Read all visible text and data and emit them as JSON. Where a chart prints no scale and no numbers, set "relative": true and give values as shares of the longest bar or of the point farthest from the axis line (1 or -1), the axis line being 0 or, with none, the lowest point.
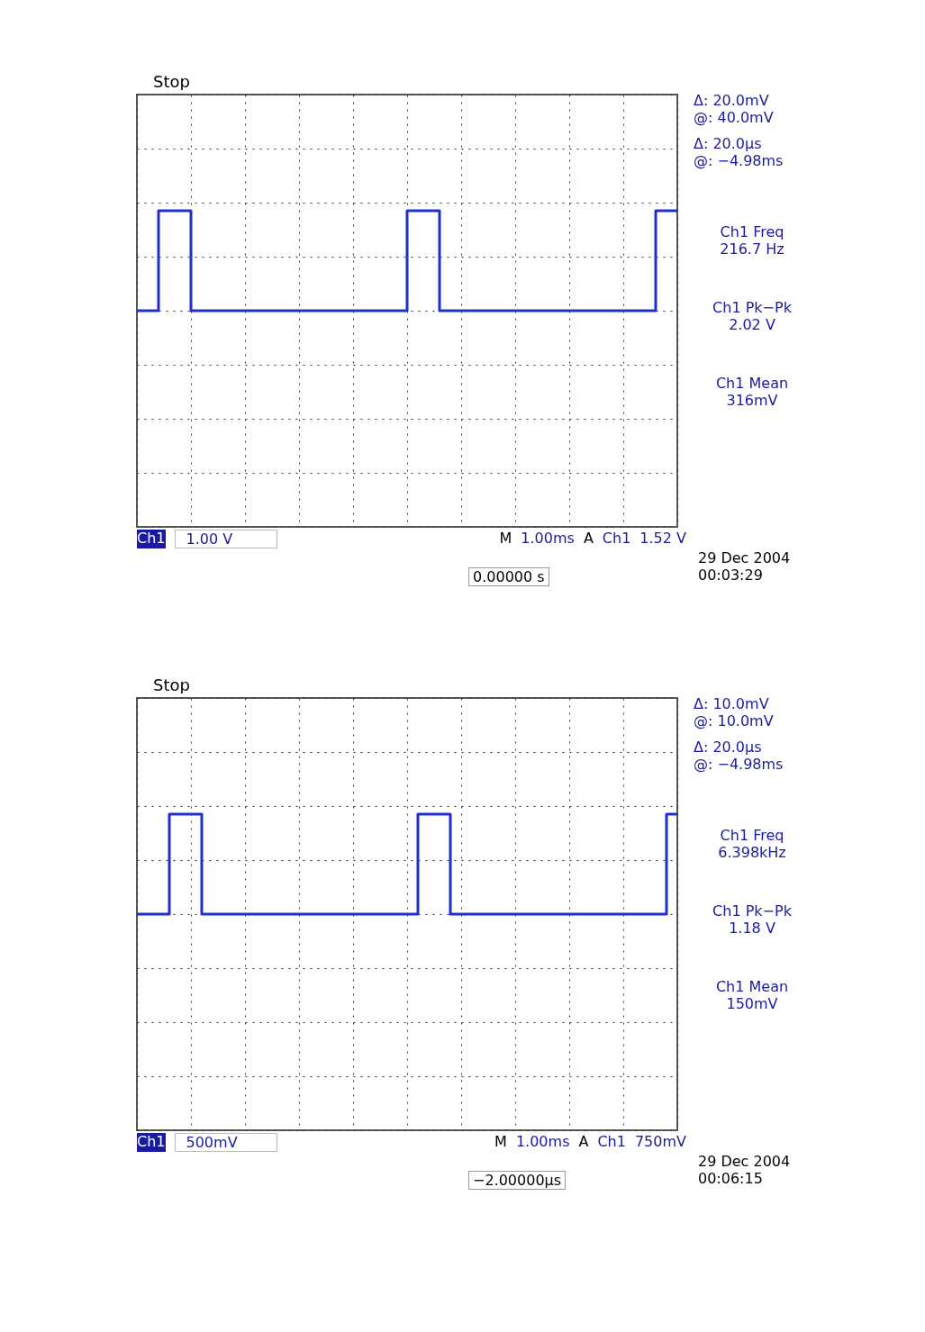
{
  "chart_data": [
    {
      "type": "step",
      "relative": true,
      "grid": true,
      "line_style": "solid",
      "categories": [
        null,
        null,
        null,
        null,
        null,
        null,
        null,
        null,
        null,
        null,
        null,
        null,
        null,
        null,
        null,
        null,
        null,
        null,
        null,
        null,
        null,
        null,
        null,
        null,
        null,
        null,
        null,
        null,
        null,
        null,
        null,
        null,
        null,
        null,
        null,
        null,
        null,
        null,
        null,
        null,
        null,
        null,
        null,
        null,
        null,
        null,
        null,
        null,
        null,
        null,
        null
      ],
      "series": [
        {
          "color": "#1f2fd0",
          "values": [
            0,
            0,
            1,
            1,
            1,
            0,
            0,
            0,
            0,
            0,
            0,
            0,
            0,
            0,
            0,
            0,
            0,
            0,
            0,
            0,
            0,
            0,
            0,
            0,
            0,
            1,
            1,
            1,
            0,
            0,
            0,
            0,
            0,
            0,
            0,
            0,
            0,
            0,
            0,
            0,
            0,
            0,
            0,
            0,
            0,
            0,
            0,
            0,
            1,
            1,
            1
          ]
        }
      ],
      "annotations": [
        "Stop",
        "Δ:   20.0mV",
        "@:   40.0mV",
        "Δ:   20.0µs",
        "@:  −4.98ms",
        "Ch1 Freq",
        "216.7 Hz",
        "Ch1 Pk−Pk",
        "2.02 V",
        "Ch1 Mean",
        "316mV",
        "Ch1",
        "1.00 V",
        "M",
        "1.00ms",
        "A",
        "Ch1",
        "1.52 V",
        "0.00000 s",
        "29 Dec  2004",
        "00:03:29"
      ]
    },
    {
      "type": "step",
      "relative": true,
      "grid": true,
      "line_style": "solid",
      "categories": [
        null,
        null,
        null,
        null,
        null,
        null,
        null,
        null,
        null,
        null,
        null,
        null,
        null,
        null,
        null,
        null,
        null,
        null,
        null,
        null,
        null,
        null,
        null,
        null,
        null,
        null,
        null,
        null,
        null,
        null,
        null,
        null,
        null,
        null,
        null,
        null,
        null,
        null,
        null,
        null,
        null,
        null,
        null,
        null,
        null,
        null,
        null,
        null,
        null,
        null,
        null
      ],
      "series": [
        {
          "color": "#1f2fd0",
          "values": [
            0,
            0,
            0,
            1,
            1,
            1,
            0,
            0,
            0,
            0,
            0,
            0,
            0,
            0,
            0,
            0,
            0,
            0,
            0,
            0,
            0,
            0,
            0,
            0,
            0,
            0,
            1,
            1,
            1,
            0,
            0,
            0,
            0,
            0,
            0,
            0,
            0,
            0,
            0,
            0,
            0,
            0,
            0,
            0,
            0,
            0,
            0,
            0,
            0,
            1,
            1
          ]
        }
      ],
      "annotations": [
        "Stop",
        "Δ:   10.0mV",
        "@:   10.0mV",
        "Δ:   20.0µs",
        "@:  −4.98ms",
        "Ch1 Freq",
        "6.398kHz",
        "Ch1 Pk−Pk",
        "1.18 V",
        "Ch1 Mean",
        "150mV",
        "Ch1",
        "500mV",
        "M",
        "1.00ms",
        "A",
        "Ch1",
        "750mV",
        "−2.00000µs",
        "29 Dec  2004",
        "00:06:15"
      ]
    }
  ]
}
